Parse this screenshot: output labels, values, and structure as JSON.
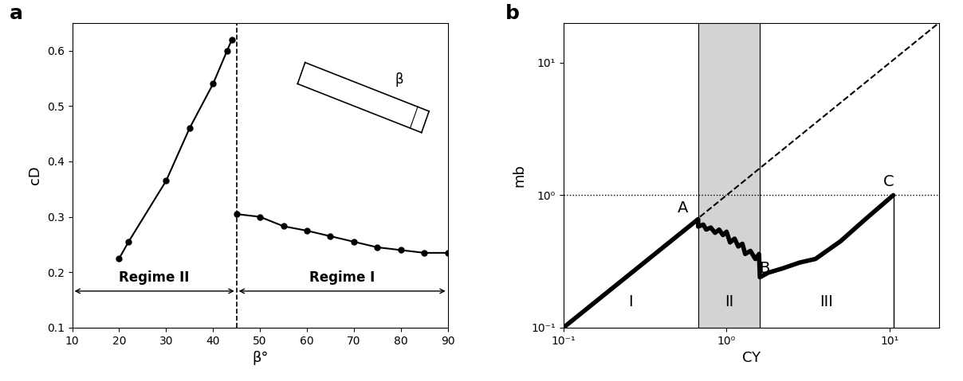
{
  "chart_data": [
    {
      "type": "line",
      "panel_label": "a",
      "x_label": "β°",
      "y_label": "cD",
      "xlim": [
        10,
        90
      ],
      "xticks": [
        10,
        20,
        30,
        40,
        50,
        60,
        70,
        80,
        90
      ],
      "ylim": [
        0.1,
        0.65
      ],
      "yticks": [
        0.1,
        0.2,
        0.3,
        0.4,
        0.5,
        0.6
      ],
      "color": "#000000",
      "marker": "o",
      "line_style": "solid",
      "series": [
        {
          "x": [
            20,
            22,
            30,
            35,
            40,
            43,
            44
          ],
          "values": [
            0.225,
            0.255,
            0.365,
            0.46,
            0.54,
            0.6,
            0.62
          ]
        },
        {
          "x": [
            45,
            50,
            55,
            60,
            65,
            70,
            75,
            80,
            85,
            90
          ],
          "values": [
            0.305,
            0.3,
            0.283,
            0.275,
            0.265,
            0.255,
            0.245,
            0.24,
            0.235,
            0.235
          ]
        }
      ],
      "divider": 45,
      "regimes": [
        {
          "label": "Regime II",
          "from": 10,
          "to": 45
        },
        {
          "label": "Regime I",
          "from": 45,
          "to": 90
        }
      ],
      "inset_annotation": "β"
    },
    {
      "type": "line",
      "panel_label": "b",
      "log": true,
      "x_label": "CY",
      "y_label": "mb",
      "xlim": [
        0.1,
        20
      ],
      "ylim": [
        0.1,
        20
      ],
      "xticks": [
        {
          "value": 0.1,
          "label": "10⁻¹"
        },
        {
          "value": 1,
          "label": "10⁰"
        },
        {
          "value": 10,
          "label": "10¹"
        }
      ],
      "yticks": [
        {
          "value": 0.1,
          "label": "10⁻¹"
        },
        {
          "value": 1,
          "label": "10⁰"
        },
        {
          "value": 10,
          "label": "10¹"
        }
      ],
      "color": "#000000",
      "x": [
        0.1,
        0.67,
        0.67,
        0.72,
        0.75,
        0.8,
        0.85,
        0.9,
        0.95,
        1.0,
        1.05,
        1.12,
        1.18,
        1.25,
        1.3,
        1.4,
        1.5,
        1.58,
        1.6,
        1.8,
        2.2,
        2.8,
        3.5,
        5,
        7,
        10.5
      ],
      "values": [
        0.1,
        0.66,
        0.58,
        0.6,
        0.55,
        0.57,
        0.52,
        0.55,
        0.5,
        0.53,
        0.44,
        0.47,
        0.41,
        0.43,
        0.36,
        0.38,
        0.33,
        0.36,
        0.24,
        0.26,
        0.28,
        0.31,
        0.33,
        0.45,
        0.65,
        1.0
      ],
      "points": [
        {
          "label": "A",
          "x": 0.67,
          "y": 0.66
        },
        {
          "label": "B",
          "x": 1.6,
          "y": 0.24
        },
        {
          "label": "C",
          "x": 10.5,
          "y": 1.0
        }
      ],
      "regions": [
        {
          "label": "I",
          "from": 0.1,
          "to": 0.67
        },
        {
          "label": "II",
          "from": 0.67,
          "to": 1.6
        },
        {
          "label": "III",
          "from": 1.6,
          "to": 10.5
        }
      ],
      "band": {
        "from": 0.67,
        "to": 1.6,
        "color": "#d3d3d3"
      },
      "reference_line": {
        "x": [
          0.1,
          20
        ],
        "values": [
          0.1,
          20
        ],
        "line_style": "dashed"
      },
      "hline": {
        "value": 1,
        "line_style": "dotted"
      }
    }
  ]
}
